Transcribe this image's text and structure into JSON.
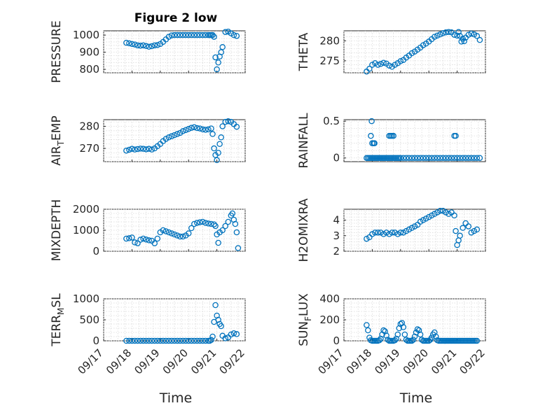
{
  "figure_title": "Figure 2 low",
  "x_axis_label": "Time",
  "chart_data": [
    {
      "type": "scatter",
      "id": "pressure",
      "title": "",
      "xlabel": "",
      "ylabel": "PRESSURE",
      "ylim": [
        780,
        1025
      ],
      "yticks": [
        800,
        900,
        1000
      ],
      "ytick_labels": [
        "800",
        "900",
        "1000"
      ],
      "xlim": [
        0,
        5
      ],
      "xticks": [
        0,
        1,
        2,
        3,
        4,
        5
      ],
      "xtick_labels": [
        "09/17",
        "09/18",
        "09/19",
        "09/20",
        "09/21",
        "09/22"
      ],
      "show_xtick_labels": false,
      "grid": true,
      "minor_grid": true,
      "marker": "circle",
      "color": "#0072BD",
      "x": [
        0.8,
        0.9,
        1.0,
        1.1,
        1.2,
        1.3,
        1.4,
        1.5,
        1.6,
        1.7,
        1.8,
        1.9,
        2.0,
        2.1,
        2.2,
        2.3,
        2.4,
        2.5,
        2.6,
        2.7,
        2.8,
        2.9,
        3.0,
        3.1,
        3.2,
        3.3,
        3.4,
        3.5,
        3.6,
        3.7,
        3.75,
        3.8,
        3.85,
        3.9,
        3.95,
        4.0,
        4.05,
        4.1,
        4.15,
        4.2,
        4.3,
        4.4,
        4.5,
        4.6,
        4.7
      ],
      "y": [
        955,
        952,
        948,
        945,
        940,
        938,
        940,
        936,
        932,
        935,
        940,
        942,
        948,
        960,
        975,
        990,
        998,
        1000,
        1000,
        1000,
        1000,
        1000,
        1000,
        1000,
        1000,
        1000,
        1000,
        1000,
        1000,
        1000,
        1000,
        1000,
        1000,
        990,
        870,
        800,
        840,
        875,
        900,
        930,
        1018,
        1020,
        1010,
        1000,
        995
      ]
    },
    {
      "type": "scatter",
      "id": "theta",
      "title": "",
      "xlabel": "",
      "ylabel": "THETA",
      "ylim": [
        272,
        282.5
      ],
      "yticks": [
        275,
        280
      ],
      "ytick_labels": [
        "275",
        "280"
      ],
      "xlim": [
        0,
        5
      ],
      "xticks": [
        0,
        1,
        2,
        3,
        4,
        5
      ],
      "xtick_labels": [
        "09/17",
        "09/18",
        "09/19",
        "09/20",
        "09/21",
        "09/22"
      ],
      "show_xtick_labels": false,
      "grid": true,
      "minor_grid": true,
      "marker": "circle",
      "color": "#0072BD",
      "x": [
        0.8,
        0.9,
        1.0,
        1.1,
        1.2,
        1.3,
        1.4,
        1.5,
        1.6,
        1.7,
        1.8,
        1.9,
        2.0,
        2.1,
        2.2,
        2.3,
        2.4,
        2.5,
        2.6,
        2.7,
        2.8,
        2.9,
        3.0,
        3.1,
        3.2,
        3.3,
        3.4,
        3.5,
        3.6,
        3.7,
        3.8,
        3.9,
        4.0,
        4.05,
        4.1,
        4.15,
        4.2,
        4.25,
        4.3,
        4.4,
        4.5,
        4.6,
        4.7,
        4.8
      ],
      "y": [
        272.3,
        273.0,
        274.0,
        274.4,
        274.0,
        274.2,
        274.5,
        274.3,
        273.8,
        273.5,
        274.0,
        274.4,
        274.9,
        275.2,
        275.8,
        276.3,
        276.9,
        277.3,
        277.8,
        278.3,
        278.9,
        279.3,
        279.8,
        280.4,
        281.0,
        281.3,
        281.6,
        281.9,
        282.1,
        282.2,
        282.1,
        281.5,
        281.3,
        282.2,
        281.2,
        279.8,
        280.5,
        279.9,
        280.8,
        281.5,
        281.8,
        281.6,
        281.2,
        280.2
      ]
    },
    {
      "type": "scatter",
      "id": "air-temp",
      "title": "",
      "xlabel": "",
      "ylabel": "AIR_TEMP",
      "ylabel_main": "AIR",
      "ylabel_sub": "T",
      "ylabel_rest": "EMP",
      "ylim": [
        264,
        283
      ],
      "yticks": [
        270,
        280
      ],
      "ytick_labels": [
        "270",
        "280"
      ],
      "xlim": [
        0,
        5
      ],
      "xticks": [
        0,
        1,
        2,
        3,
        4,
        5
      ],
      "xtick_labels": [
        "09/17",
        "09/18",
        "09/19",
        "09/20",
        "09/21",
        "09/22"
      ],
      "show_xtick_labels": false,
      "grid": true,
      "minor_grid": true,
      "marker": "circle",
      "color": "#0072BD",
      "x": [
        0.8,
        0.9,
        1.0,
        1.1,
        1.2,
        1.3,
        1.4,
        1.5,
        1.6,
        1.7,
        1.8,
        1.9,
        2.0,
        2.1,
        2.2,
        2.3,
        2.4,
        2.5,
        2.6,
        2.7,
        2.8,
        2.9,
        3.0,
        3.1,
        3.2,
        3.3,
        3.4,
        3.5,
        3.6,
        3.7,
        3.8,
        3.85,
        3.9,
        3.95,
        4.0,
        4.05,
        4.1,
        4.15,
        4.2,
        4.3,
        4.4,
        4.5,
        4.6,
        4.7
      ],
      "y": [
        269.0,
        269.4,
        269.8,
        269.5,
        269.7,
        269.9,
        269.8,
        269.6,
        269.8,
        269.5,
        270.0,
        271.0,
        272.0,
        273.3,
        274.3,
        275.0,
        275.5,
        276.0,
        276.5,
        277.0,
        277.8,
        278.3,
        278.8,
        279.3,
        279.6,
        279.2,
        279.0,
        278.6,
        278.4,
        278.6,
        279.0,
        276.5,
        270.0,
        267.0,
        264.7,
        268.0,
        272.0,
        275.0,
        280.0,
        282.0,
        282.3,
        282.0,
        281.0,
        279.8
      ]
    },
    {
      "type": "scatter",
      "id": "rainfall",
      "title": "",
      "xlabel": "",
      "ylabel": "RAINFALL",
      "ylim": [
        -0.05,
        0.52
      ],
      "yticks": [
        0,
        0.5
      ],
      "ytick_labels": [
        "0",
        "0.5"
      ],
      "xlim": [
        0,
        5
      ],
      "xticks": [
        0,
        1,
        2,
        3,
        4,
        5
      ],
      "xtick_labels": [
        "09/17",
        "09/18",
        "09/19",
        "09/20",
        "09/21",
        "09/22"
      ],
      "show_xtick_labels": false,
      "grid": true,
      "minor_grid": true,
      "marker": "circle",
      "color": "#0072BD",
      "x": [
        0.8,
        0.85,
        0.9,
        0.95,
        1.0,
        1.05,
        1.1,
        1.15,
        1.2,
        1.25,
        1.3,
        1.35,
        1.4,
        1.45,
        1.5,
        1.55,
        1.6,
        1.65,
        1.7,
        1.75,
        1.8,
        1.85,
        1.9,
        1.95,
        2.0,
        2.1,
        2.2,
        2.3,
        2.4,
        2.5,
        2.6,
        2.7,
        2.8,
        2.9,
        3.0,
        3.1,
        3.2,
        3.3,
        3.4,
        3.5,
        3.6,
        3.7,
        3.8,
        3.9,
        4.0,
        4.1,
        4.2,
        4.3,
        4.4,
        4.5,
        4.6,
        4.7,
        4.8,
        0.95,
        0.98,
        1.0,
        1.05,
        1.08,
        1.6,
        1.65,
        1.7,
        1.75,
        3.9,
        3.95
      ],
      "y": [
        0,
        0,
        0,
        0,
        0,
        0,
        0,
        0,
        0,
        0,
        0,
        0,
        0,
        0,
        0,
        0,
        0,
        0,
        0,
        0,
        0,
        0,
        0,
        0,
        0,
        0,
        0,
        0,
        0,
        0,
        0,
        0,
        0,
        0,
        0,
        0,
        0,
        0,
        0,
        0,
        0,
        0,
        0,
        0,
        0,
        0,
        0,
        0,
        0,
        0,
        0,
        0,
        0,
        0.3,
        0.5,
        0.2,
        0.2,
        0.2,
        0.3,
        0.3,
        0.3,
        0.3,
        0.3,
        0.3
      ]
    },
    {
      "type": "scatter",
      "id": "mixdepth",
      "title": "",
      "xlabel": "",
      "ylabel": "MIXDEPTH",
      "ylim": [
        0,
        2000
      ],
      "yticks": [
        0,
        1000,
        2000
      ],
      "ytick_labels": [
        "0",
        "1000",
        "2000"
      ],
      "xlim": [
        0,
        5
      ],
      "xticks": [
        0,
        1,
        2,
        3,
        4,
        5
      ],
      "xtick_labels": [
        "09/17",
        "09/18",
        "09/19",
        "09/20",
        "09/21",
        "09/22"
      ],
      "show_xtick_labels": false,
      "grid": true,
      "minor_grid": true,
      "marker": "circle",
      "color": "#0072BD",
      "x": [
        0.8,
        0.9,
        1.0,
        1.1,
        1.2,
        1.3,
        1.4,
        1.5,
        1.6,
        1.7,
        1.8,
        1.9,
        2.0,
        2.1,
        2.2,
        2.3,
        2.4,
        2.5,
        2.6,
        2.7,
        2.8,
        2.9,
        3.0,
        3.1,
        3.2,
        3.3,
        3.4,
        3.5,
        3.6,
        3.7,
        3.8,
        3.9,
        3.95,
        4.0,
        4.05,
        4.1,
        4.2,
        4.3,
        4.4,
        4.5,
        4.55,
        4.6,
        4.65,
        4.7,
        4.75
      ],
      "y": [
        600,
        620,
        650,
        420,
        380,
        550,
        600,
        560,
        520,
        500,
        380,
        600,
        900,
        1000,
        950,
        900,
        850,
        800,
        750,
        700,
        700,
        750,
        850,
        1100,
        1300,
        1350,
        1380,
        1400,
        1350,
        1320,
        1300,
        1280,
        1200,
        800,
        400,
        900,
        1000,
        1200,
        1400,
        1700,
        1800,
        1500,
        1300,
        900,
        150
      ]
    },
    {
      "type": "scatter",
      "id": "h2omixra",
      "title": "",
      "xlabel": "",
      "ylabel": "H2OMIXRA",
      "ylim": [
        2,
        4.7
      ],
      "yticks": [
        2,
        3,
        4
      ],
      "ytick_labels": [
        "2",
        "3",
        "4"
      ],
      "xlim": [
        0,
        5
      ],
      "xticks": [
        0,
        1,
        2,
        3,
        4,
        5
      ],
      "xtick_labels": [
        "09/17",
        "09/18",
        "09/19",
        "09/20",
        "09/21",
        "09/22"
      ],
      "show_xtick_labels": false,
      "grid": true,
      "minor_grid": true,
      "marker": "circle",
      "color": "#0072BD",
      "x": [
        0.8,
        0.9,
        1.0,
        1.1,
        1.2,
        1.3,
        1.4,
        1.5,
        1.6,
        1.7,
        1.8,
        1.9,
        2.0,
        2.1,
        2.2,
        2.3,
        2.4,
        2.5,
        2.6,
        2.7,
        2.8,
        2.9,
        3.0,
        3.1,
        3.2,
        3.3,
        3.4,
        3.5,
        3.6,
        3.7,
        3.8,
        3.9,
        3.95,
        4.0,
        4.05,
        4.1,
        4.2,
        4.3,
        4.4,
        4.5,
        4.6,
        4.7
      ],
      "y": [
        2.8,
        2.9,
        3.1,
        3.2,
        3.2,
        3.2,
        3.1,
        3.2,
        3.1,
        3.2,
        3.2,
        3.1,
        3.2,
        3.2,
        3.3,
        3.4,
        3.5,
        3.6,
        3.7,
        3.9,
        4.0,
        4.1,
        4.2,
        4.3,
        4.4,
        4.5,
        4.6,
        4.6,
        4.5,
        4.4,
        4.5,
        4.3,
        3.3,
        2.4,
        2.7,
        3.0,
        3.5,
        3.8,
        3.6,
        3.2,
        3.3,
        3.4
      ]
    },
    {
      "type": "scatter",
      "id": "terr-msl",
      "title": "",
      "xlabel": "",
      "ylabel": "TERR_MSL",
      "ylabel_main": "TERR",
      "ylabel_sub": "M",
      "ylabel_rest": "SL",
      "ylim": [
        0,
        1000
      ],
      "yticks": [
        0,
        500,
        1000
      ],
      "ytick_labels": [
        "0",
        "500",
        "1000"
      ],
      "xlim": [
        0,
        5
      ],
      "xticks": [
        0,
        1,
        2,
        3,
        4,
        5
      ],
      "xtick_labels": [
        "09/17",
        "09/18",
        "09/19",
        "09/20",
        "09/21",
        "09/22"
      ],
      "show_xtick_labels": true,
      "grid": true,
      "minor_grid": true,
      "marker": "circle",
      "color": "#0072BD",
      "x": [
        0.8,
        0.9,
        1.0,
        1.1,
        1.2,
        1.3,
        1.4,
        1.5,
        1.6,
        1.7,
        1.8,
        1.9,
        2.0,
        2.1,
        2.2,
        2.3,
        2.4,
        2.5,
        2.6,
        2.7,
        2.8,
        2.9,
        3.0,
        3.1,
        3.2,
        3.3,
        3.4,
        3.5,
        3.6,
        3.7,
        3.75,
        3.8,
        3.85,
        3.9,
        3.95,
        4.0,
        4.05,
        4.1,
        4.15,
        4.2,
        4.3,
        4.4,
        4.5,
        4.6,
        4.7
      ],
      "y": [
        0,
        0,
        0,
        0,
        0,
        0,
        0,
        0,
        0,
        0,
        0,
        0,
        0,
        0,
        0,
        0,
        0,
        0,
        0,
        0,
        0,
        0,
        0,
        0,
        0,
        0,
        0,
        0,
        0,
        0,
        0,
        20,
        100,
        450,
        850,
        600,
        500,
        400,
        350,
        120,
        60,
        80,
        150,
        180,
        160
      ]
    },
    {
      "type": "scatter",
      "id": "sun-flux",
      "title": "",
      "xlabel": "",
      "ylabel": "SUN_FLUX",
      "ylabel_main": "SUN",
      "ylabel_sub": "F",
      "ylabel_rest": "LUX",
      "ylim": [
        0,
        400
      ],
      "yticks": [
        0,
        200,
        400
      ],
      "ytick_labels": [
        "0",
        "200",
        "400"
      ],
      "xlim": [
        0,
        5
      ],
      "xticks": [
        0,
        1,
        2,
        3,
        4,
        5
      ],
      "xtick_labels": [
        "09/17",
        "09/18",
        "09/19",
        "09/20",
        "09/21",
        "09/22"
      ],
      "show_xtick_labels": true,
      "grid": true,
      "minor_grid": true,
      "marker": "circle",
      "color": "#0072BD",
      "x": [
        0.8,
        0.85,
        0.9,
        0.95,
        1.0,
        1.05,
        1.1,
        1.15,
        1.2,
        1.25,
        1.3,
        1.35,
        1.4,
        1.45,
        1.5,
        1.55,
        1.6,
        1.65,
        1.7,
        1.75,
        1.8,
        1.85,
        1.9,
        1.95,
        2.0,
        2.05,
        2.1,
        2.15,
        2.2,
        2.25,
        2.3,
        2.35,
        2.4,
        2.45,
        2.5,
        2.55,
        2.6,
        2.65,
        2.7,
        2.75,
        2.8,
        2.85,
        2.9,
        2.95,
        3.0,
        3.05,
        3.1,
        3.15,
        3.2,
        3.25,
        3.3,
        3.35,
        3.4,
        3.45,
        3.5,
        3.55,
        3.6,
        3.65,
        3.7,
        3.75,
        3.8,
        3.85,
        3.9,
        3.95,
        4.0,
        4.05,
        4.1,
        4.15,
        4.2,
        4.25,
        4.3,
        4.35,
        4.4,
        4.45,
        4.5,
        4.55,
        4.6,
        4.65,
        4.7
      ],
      "y": [
        150,
        100,
        30,
        5,
        0,
        0,
        0,
        0,
        0,
        5,
        20,
        60,
        100,
        90,
        50,
        10,
        0,
        0,
        0,
        0,
        5,
        20,
        60,
        120,
        160,
        170,
        130,
        60,
        10,
        0,
        0,
        0,
        0,
        10,
        40,
        80,
        110,
        100,
        60,
        10,
        0,
        0,
        0,
        0,
        0,
        10,
        30,
        60,
        80,
        40,
        5,
        0,
        0,
        0,
        0,
        0,
        0,
        0,
        0,
        0,
        0,
        0,
        0,
        0,
        0,
        0,
        0,
        0,
        0,
        0,
        0,
        0,
        0,
        0,
        0,
        0,
        0,
        0,
        0
      ]
    }
  ]
}
